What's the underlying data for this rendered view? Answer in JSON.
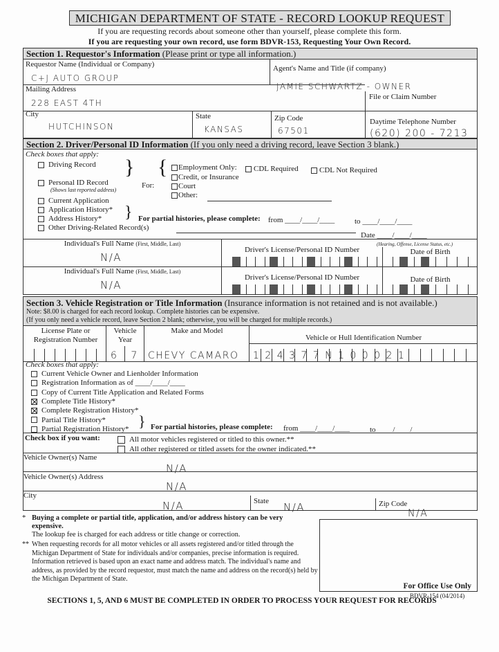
{
  "title": "MICHIGAN DEPARTMENT OF STATE - RECORD LOOKUP REQUEST",
  "intro": [
    "If you are requesting records about someone other than yourself, please complete this form.",
    "If you are requesting your own record, use form BDVR-153, Requesting Your Own Record."
  ],
  "section1": {
    "header": "Section 1.  Requestor's Information",
    "header_note": "(Please print or type all information.)",
    "requestor_label": "Requestor Name (Individual or Company)",
    "requestor_value": "C+J AUTO GROUP",
    "agent_label": "Agent's Name and Title (if company)",
    "agent_value": "JAMIE SCHWARTZ - OWNER",
    "mailing_label": "Mailing Address",
    "mailing_value": "228 EAST 4TH",
    "file_label": "File or Claim Number",
    "file_value": "",
    "city_label": "City",
    "city_value": "HUTCHINSON",
    "state_label": "State",
    "state_value": "KANSAS",
    "zip_label": "Zip Code",
    "zip_value": "67501",
    "phone_label": "Daytime Telephone Number",
    "phone_value": "(620) 200 - 7213"
  },
  "section2": {
    "header": "Section 2.  Driver/Personal ID Information",
    "header_note": "(If you only need a driving record, leave Section 3 blank.)",
    "check_label": "Check boxes that apply:",
    "driving_record": "Driving Record",
    "personal_id": "Personal ID Record",
    "personal_id_note": "(Shows last reported address)",
    "for_label": "For:",
    "employment": "Employment Only:",
    "cdl_required": "CDL Required",
    "cdl_not_required": "CDL Not Required",
    "credit": "Credit, or Insurance",
    "court": "Court",
    "other": "Other:",
    "current_application": "Current Application",
    "application_history": "Application History*",
    "address_history": "Address History*",
    "partial": "For partial histories, please complete:",
    "from": "from",
    "to": "to",
    "date_blank": "____/____/____",
    "other_driving": "Other Driving-Related Record(s)",
    "date_label": "Date",
    "date_note": "(Hearing, Offense, License Status, etc.)",
    "name_label": "Individual's Full Name",
    "name_note": "(First, Middle, Last)",
    "dl_label": "Driver's License/Personal ID Number",
    "dob_label": "Date of Birth",
    "names": [
      "N/A",
      "N/A"
    ]
  },
  "section3": {
    "header": "Section 3.  Vehicle Registration or Title Information",
    "header_note": "(Insurance information is not retained and is not available.)",
    "note1": "Note:  $8.00 is charged for each record lookup.  Complete histories can be expensive.",
    "note2": "(If you only need a vehicle record, leave Section 2 blank; otherwise, you will be charged for multiple records.)",
    "plate_label": "License Plate or Registration Number",
    "year_label": "Vehicle Year",
    "make_label": "Make and Model",
    "vin_label": "Vehicle or Hull Identification Number",
    "year_value": "6 7",
    "make_value": "CHEVY CAMARO",
    "vin_value": "1 2 4 3 7 7 N 1 0 0 0 2 1",
    "check_label": "Check boxes that apply:",
    "options": [
      {
        "label": "Current Vehicle Owner and Lienholder Information",
        "checked": false
      },
      {
        "label": "Registration Information as of ____/____/____",
        "checked": false
      },
      {
        "label": "Copy of Current Title Application and Related Forms",
        "checked": false
      },
      {
        "label": "Complete Title History*",
        "checked": true
      },
      {
        "label": "Complete Registration History*",
        "checked": true
      },
      {
        "label": "Partial Title History*",
        "checked": false
      },
      {
        "label": "Partial Registration History*",
        "checked": false
      }
    ],
    "partial": "For partial histories, please complete:",
    "from": "from",
    "to": "to",
    "date_blank": "____/____/____",
    "want_label": "Check box if you want:",
    "want1": "All motor vehicles registered or titled to this owner.**",
    "want2": "All other registered or titled assets for the owner indicated.**",
    "owner_name_label": "Vehicle Owner(s) Name",
    "owner_name_value": "N/A",
    "owner_address_label": "Vehicle Owner(s) Address",
    "owner_address_value": "N/A",
    "city_label": "City",
    "city_value": "N/A",
    "state_label": "State",
    "state_value": "N/A",
    "zip_label": "Zip Code",
    "zip_value": "N/A"
  },
  "footnote1_bold": "Buying a complete or partial title, application, and/or address history can be very expensive.",
  "footnote1": "The lookup fee is charged for each address or title change or correction.",
  "footnote2": "When requesting records for all motor vehicles or all assets registered and/or titled through the Michigan Department of State for individuals and/or companies, precise information is required. Information retrieved is based upon an exact name and address match.  The individual's name and address, as provided by the record requestor, must match the name and address on the record(s) held by the Michigan Department of State.",
  "office_use": "For Office Use Only",
  "form_number": "BDVR-154 (04/2014)",
  "bottom": "SECTIONS 1, 5, AND 6 MUST BE COMPLETED IN ORDER TO PROCESS YOUR REQUEST FOR RECORDS"
}
